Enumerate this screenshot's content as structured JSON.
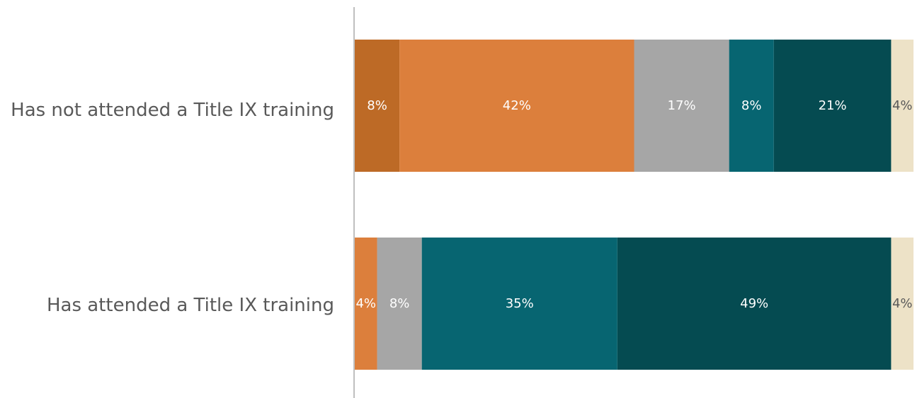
{
  "chart_data": {
    "type": "bar",
    "orientation": "horizontal",
    "stacked": true,
    "title": "",
    "xlabel": "",
    "ylabel": "",
    "xlim": [
      0,
      100
    ],
    "grid": false,
    "legend": "none",
    "categories": [
      "Has not attended a Title IX training",
      "Has attended a Title IX training"
    ],
    "series": [
      {
        "color": "#bd6a26",
        "text_color": "#ffffff",
        "values": [
          8,
          0
        ]
      },
      {
        "color": "#dc7f3c",
        "text_color": "#ffffff",
        "values": [
          42,
          4
        ]
      },
      {
        "color": "#a6a6a6",
        "text_color": "#ffffff",
        "values": [
          17,
          8
        ]
      },
      {
        "color": "#076571",
        "text_color": "#ffffff",
        "values": [
          8,
          35
        ]
      },
      {
        "color": "#054b51",
        "text_color": "#ffffff",
        "values": [
          21,
          49
        ]
      },
      {
        "color": "#ede2c7",
        "text_color": "#595959",
        "values": [
          4,
          4
        ]
      }
    ],
    "data_labels": [
      [
        "8%",
        "42%",
        "17%",
        "8%",
        "21%",
        "4%"
      ],
      [
        "",
        "4%",
        "8%",
        "35%",
        "49%",
        "4%"
      ]
    ]
  }
}
